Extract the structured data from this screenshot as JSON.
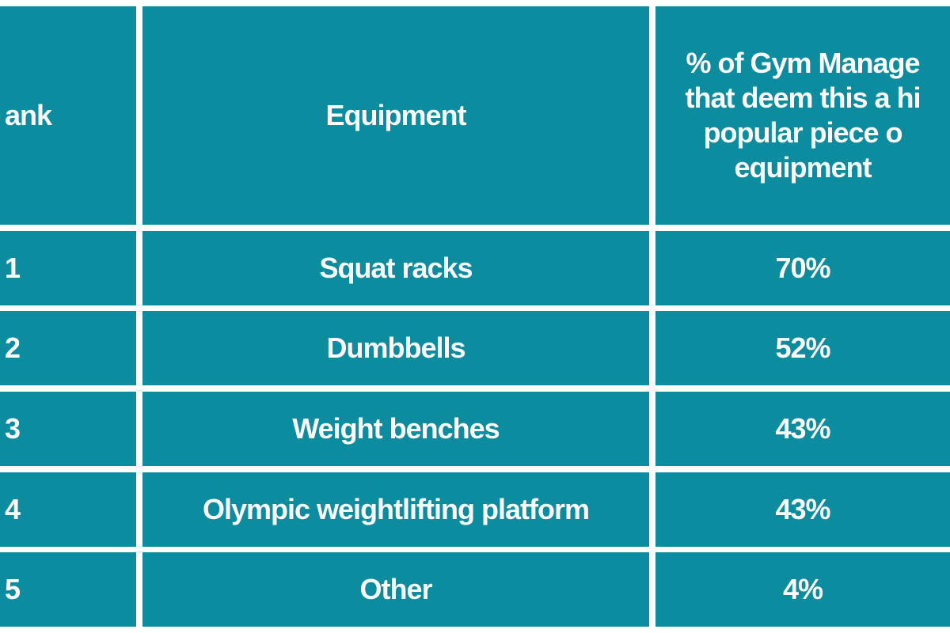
{
  "table": {
    "header": {
      "rank": "ank",
      "equipment": "Equipment",
      "percent": [
        "% of Gym Manage",
        "that deem this a hi",
        "popular piece o",
        "equipment"
      ]
    },
    "rows": [
      [
        "1",
        "Squat racks",
        "70%"
      ],
      [
        "2",
        "Dumbbells",
        "52%"
      ],
      [
        "3",
        "Weight benches",
        "43%"
      ],
      [
        "4",
        "Olympic weightlifting platform",
        "43%"
      ],
      [
        "5",
        "Other",
        "4%"
      ]
    ]
  }
}
